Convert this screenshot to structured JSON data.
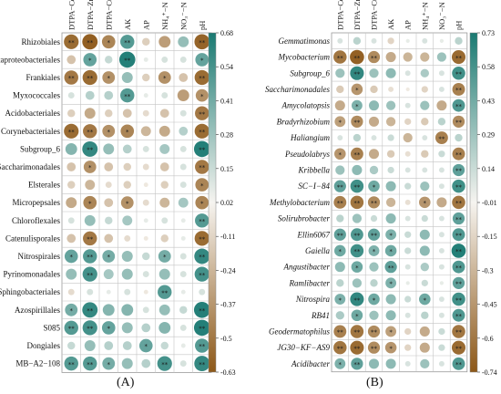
{
  "figure": {
    "panel_a_label": "(A)",
    "panel_b_label": "(B)"
  },
  "chart_data": [
    {
      "type": "heatmap",
      "panel": "(A)",
      "columns": [
        "DTPA−Cd",
        "DTPA−Zn",
        "DTPA−Cu",
        "AK",
        "AP",
        "NH₄⁺−N",
        "NO₃⁻−N",
        "pH"
      ],
      "rows": [
        "Rhizobiales",
        "Betaproteobacteriales",
        "Frankiales",
        "Myxococcales",
        "Acidobacteriales",
        "Corynebacteriales",
        "Subgroup_6",
        "Saccharimonadales",
        "Elsterales",
        "Micropepsales",
        "Chloroflexales",
        "Catenulisporales",
        "Nitrospirales",
        "Pyrinomonadales",
        "Sphingobacteriales",
        "Azospirillales",
        "S085",
        "Dongiales",
        "MB−A2−108"
      ],
      "colorbar": {
        "ticks": [
          0.68,
          0.54,
          0.41,
          0.28,
          0.15,
          0.02,
          -0.11,
          -0.24,
          -0.37,
          -0.5,
          -0.63
        ],
        "min": -0.63,
        "max": 0.68
      },
      "values": [
        [
          -0.55,
          -0.6,
          -0.45,
          0.5,
          -0.15,
          -0.35,
          0.3,
          -0.58
        ],
        [
          -0.2,
          0.45,
          0.15,
          0.65,
          0.05,
          0.1,
          0.1,
          0.45
        ],
        [
          -0.5,
          -0.55,
          -0.4,
          0.3,
          -0.15,
          -0.4,
          -0.2,
          -0.55
        ],
        [
          0.1,
          0.2,
          0.2,
          0.5,
          0.05,
          0.1,
          -0.35,
          -0.4
        ],
        [
          -0.15,
          -0.3,
          -0.15,
          -0.2,
          -0.1,
          -0.2,
          0.1,
          -0.5
        ],
        [
          -0.55,
          -0.5,
          -0.4,
          -0.45,
          -0.25,
          -0.3,
          0.2,
          -0.55
        ],
        [
          0.35,
          0.6,
          0.3,
          0.2,
          0.1,
          0.25,
          0.1,
          0.65
        ],
        [
          -0.2,
          -0.4,
          -0.2,
          -0.15,
          -0.1,
          -0.2,
          0.1,
          -0.5
        ],
        [
          -0.15,
          -0.25,
          -0.1,
          -0.15,
          -0.05,
          -0.15,
          0.1,
          -0.45
        ],
        [
          -0.3,
          -0.45,
          -0.2,
          -0.4,
          -0.1,
          -0.25,
          0.25,
          -0.45
        ],
        [
          0.1,
          0.3,
          0.15,
          0.25,
          0.05,
          0.1,
          0.05,
          0.5
        ],
        [
          -0.2,
          -0.5,
          -0.2,
          -0.1,
          -0.05,
          -0.15,
          0.05,
          -0.55
        ],
        [
          0.45,
          0.5,
          0.4,
          0.3,
          0.15,
          0.4,
          0.1,
          0.6
        ],
        [
          0.3,
          0.55,
          0.25,
          0.3,
          0.1,
          0.3,
          0.1,
          0.55
        ],
        [
          -0.1,
          0.1,
          0.05,
          0.1,
          -0.05,
          0.5,
          0.05,
          0.1
        ],
        [
          0.4,
          0.6,
          0.35,
          0.35,
          0.1,
          0.3,
          0.15,
          0.65
        ],
        [
          0.5,
          0.55,
          0.45,
          0.3,
          0.2,
          0.35,
          0.1,
          0.65
        ],
        [
          0.15,
          0.3,
          0.2,
          0.2,
          0.45,
          0.15,
          0.05,
          0.5
        ],
        [
          0.5,
          0.5,
          0.4,
          0.3,
          0.2,
          0.55,
          0.1,
          0.6
        ]
      ]
    },
    {
      "type": "heatmap",
      "panel": "(B)",
      "columns": [
        "DTPA−Cd",
        "DTPA−Zn",
        "DTPA−Cu",
        "AK",
        "AP",
        "NH₄⁺−N",
        "NO₃⁻−N",
        "pH"
      ],
      "rows": [
        "Gemmatimonas",
        "Mycobacterium",
        "Subgroup_6",
        "Saccharimonadales",
        "Amycolatopsis",
        "Bradyrhizobium",
        "Haliangium",
        "Pseudolabrys",
        "Kribbella",
        "SC−I−84",
        "Methylobacterium",
        "Solirubrobacter",
        "Ellin6067",
        "Gaiella",
        "Angustibacter",
        "Ramlibacter",
        "Nitrospira",
        "RB41",
        "Geodermatophilus",
        "JG30−KF−AS9",
        "Acidibacter"
      ],
      "colorbar": {
        "ticks": [
          0.73,
          0.58,
          0.43,
          0.29,
          0.14,
          -0.01,
          -0.15,
          -0.3,
          -0.45,
          -0.6,
          -0.74
        ],
        "min": -0.74,
        "max": 0.73
      },
      "values": [
        [
          0.1,
          0.2,
          0.1,
          -0.15,
          0.05,
          0.1,
          0.05,
          0.2
        ],
        [
          -0.6,
          -0.7,
          -0.5,
          -0.35,
          -0.3,
          -0.3,
          0.3,
          -0.65
        ],
        [
          0.3,
          0.65,
          0.3,
          0.35,
          0.1,
          0.25,
          0.1,
          0.6
        ],
        [
          -0.2,
          -0.45,
          -0.2,
          -0.1,
          -0.05,
          -0.15,
          0.1,
          -0.55
        ],
        [
          -0.35,
          0.4,
          0.35,
          0.3,
          0.1,
          0.3,
          -0.35,
          0.55
        ],
        [
          -0.4,
          -0.5,
          -0.35,
          -0.3,
          -0.15,
          -0.2,
          0.2,
          -0.5
        ],
        [
          0.1,
          0.2,
          0.1,
          0.15,
          -0.3,
          0.1,
          -0.55,
          0.2
        ],
        [
          -0.45,
          -0.55,
          -0.35,
          -0.2,
          -0.1,
          -0.2,
          0.15,
          -0.55
        ],
        [
          0.3,
          0.35,
          0.25,
          0.15,
          0.1,
          0.1,
          0.1,
          0.5
        ],
        [
          0.5,
          0.6,
          0.45,
          0.35,
          0.15,
          0.3,
          0.1,
          0.6
        ],
        [
          -0.55,
          -0.6,
          -0.5,
          -0.3,
          -0.1,
          -0.45,
          -0.35,
          -0.6
        ],
        [
          0.2,
          0.3,
          0.15,
          0.35,
          0.1,
          0.15,
          0.1,
          0.5
        ],
        [
          0.5,
          0.55,
          0.5,
          0.4,
          0.15,
          0.35,
          0.1,
          0.55
        ],
        [
          0.45,
          0.6,
          0.4,
          0.45,
          0.15,
          0.35,
          0.1,
          0.7
        ],
        [
          0.35,
          0.45,
          0.3,
          0.5,
          0.1,
          0.25,
          0.1,
          0.55
        ],
        [
          0.2,
          0.3,
          0.2,
          0.4,
          0.05,
          0.15,
          0.05,
          0.5
        ],
        [
          0.4,
          0.65,
          0.45,
          0.35,
          0.15,
          0.45,
          0.1,
          0.6
        ],
        [
          0.25,
          0.45,
          0.3,
          0.35,
          0.1,
          0.2,
          0.1,
          0.55
        ],
        [
          -0.55,
          -0.6,
          -0.5,
          -0.4,
          -0.15,
          -0.35,
          0.15,
          -0.6
        ],
        [
          -0.6,
          -0.65,
          -0.5,
          -0.45,
          -0.15,
          -0.35,
          0.15,
          -0.65
        ],
        [
          0.4,
          0.5,
          0.35,
          0.35,
          0.1,
          0.3,
          0.1,
          0.55
        ]
      ]
    }
  ]
}
